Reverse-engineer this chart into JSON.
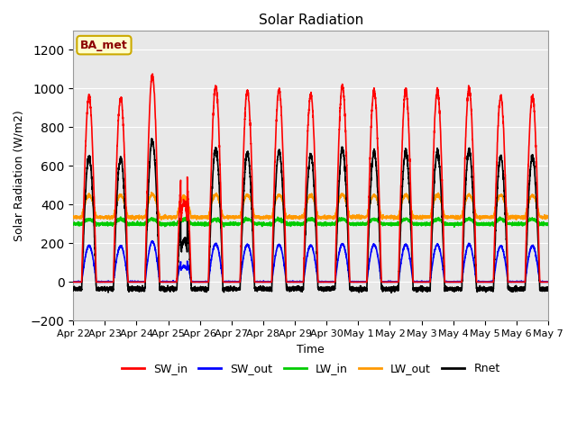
{
  "title": "Solar Radiation",
  "ylabel": "Solar Radiation (W/m2)",
  "xlabel": "Time",
  "annotation": "BA_met",
  "ylim": [
    -200,
    1300
  ],
  "yticks": [
    -200,
    0,
    200,
    400,
    600,
    800,
    1000,
    1200
  ],
  "date_labels": [
    "Apr 22",
    "Apr 23",
    "Apr 24",
    "Apr 25",
    "Apr 26",
    "Apr 27",
    "Apr 28",
    "Apr 29",
    "Apr 30",
    "May 1",
    "May 2",
    "May 3",
    "May 4",
    "May 5",
    "May 6",
    "May 7"
  ],
  "series": {
    "SW_in": {
      "color": "#ff0000",
      "lw": 1.2
    },
    "SW_out": {
      "color": "#0000ff",
      "lw": 1.2
    },
    "LW_in": {
      "color": "#00cc00",
      "lw": 1.2
    },
    "LW_out": {
      "color": "#ff9900",
      "lw": 1.2
    },
    "Rnet": {
      "color": "#000000",
      "lw": 1.2
    }
  },
  "background_color": "#ffffff",
  "plot_bg_color": "#e8e8e8",
  "n_days": 15,
  "pts_per_day": 288,
  "SW_in_peaks": [
    960,
    950,
    1070,
    690,
    1010,
    990,
    990,
    970,
    1010,
    990,
    990,
    990,
    1000,
    960,
    960
  ]
}
